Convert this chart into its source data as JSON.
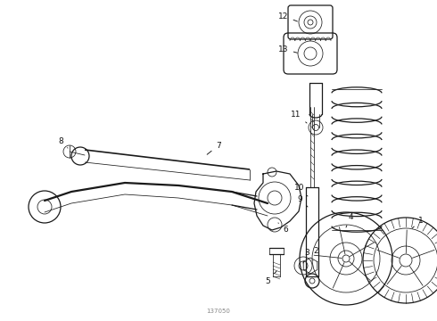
{
  "bg_color": "#ffffff",
  "line_color": "#1a1a1a",
  "label_color": "#111111",
  "diagram_id": "137050",
  "figsize": [
    4.9,
    3.6
  ],
  "dpi": 100
}
